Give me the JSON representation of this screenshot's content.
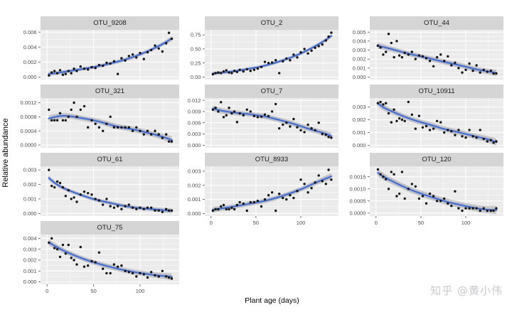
{
  "watermark": "知乎 @黄小伟",
  "chart_data": {
    "type": "scatter",
    "smooth": "loess-with-confidence-band",
    "title": "",
    "xlabel": "Plant age (days)",
    "ylabel": "Relative abundance",
    "x_ticks": [
      0,
      50,
      100
    ],
    "x_tick_labels": [
      "0",
      "50",
      "100"
    ],
    "x_minor": [
      25,
      75,
      125
    ],
    "x_range": [
      -7,
      142
    ],
    "colors": {
      "panel_bg": "#ebebeb",
      "strip_bg": "#d5d5d5",
      "grid_major": "#ffffff",
      "grid_minor": "#f7f7f7",
      "point": "#151515",
      "smooth_line": "#3d66c9",
      "smooth_halo": "rgba(125,150,220,0.55)",
      "band": "rgba(110,110,120,0.30)",
      "tick_text": "#4d4d4d",
      "tick_mark": "#333333"
    },
    "facets": [
      {
        "title": "OTU_9208",
        "has_x_axis": false,
        "y_ticks": [
          0,
          0.002,
          0.004,
          0.006
        ],
        "y_tick_labels": [
          "0.000",
          "0.002",
          "0.004",
          "0.006"
        ],
        "y_range": [
          -0.00035,
          0.0063
        ],
        "x": [
          2,
          5,
          8,
          11,
          14,
          17,
          20,
          23,
          26,
          29,
          32,
          36,
          40,
          44,
          48,
          52,
          56,
          60,
          64,
          68,
          72,
          76,
          80,
          84,
          88,
          92,
          96,
          100,
          104,
          108,
          112,
          116,
          120,
          124,
          128,
          131,
          134
        ],
        "y": [
          0.0002,
          0.0006,
          0.0008,
          0.0005,
          0.0009,
          0.0003,
          0.0004,
          0.0008,
          0.0005,
          0.0011,
          0.0008,
          0.0014,
          0.0011,
          0.001,
          0.0013,
          0.0012,
          0.0016,
          0.0015,
          0.0019,
          0.0018,
          0.0021,
          0.0004,
          0.0025,
          0.0022,
          0.0028,
          0.003,
          0.0026,
          0.0032,
          0.0024,
          0.0033,
          0.0036,
          0.0042,
          0.0038,
          0.0034,
          0.0045,
          0.0059,
          0.0051
        ]
      },
      {
        "title": "OTU_2",
        "has_x_axis": false,
        "y_ticks": [
          0,
          0.25,
          0.5,
          0.75
        ],
        "y_tick_labels": [
          "0.00",
          "0.25",
          "0.50",
          "0.75"
        ],
        "y_range": [
          -0.045,
          0.84
        ],
        "x": [
          2,
          5,
          8,
          11,
          14,
          17,
          20,
          23,
          26,
          29,
          32,
          36,
          40,
          44,
          48,
          52,
          56,
          60,
          64,
          68,
          72,
          76,
          80,
          84,
          88,
          92,
          96,
          100,
          104,
          108,
          112,
          116,
          120,
          124,
          128,
          131,
          134
        ],
        "y": [
          0.05,
          0.07,
          0.08,
          0.07,
          0.1,
          0.12,
          0.08,
          0.07,
          0.11,
          0.09,
          0.13,
          0.1,
          0.14,
          0.11,
          0.13,
          0.15,
          0.18,
          0.27,
          0.25,
          0.26,
          0.3,
          0.07,
          0.28,
          0.33,
          0.3,
          0.4,
          0.35,
          0.44,
          0.5,
          0.42,
          0.47,
          0.52,
          0.55,
          0.58,
          0.65,
          0.72,
          0.79
        ]
      },
      {
        "title": "OTU_44",
        "has_x_axis": false,
        "y_ticks": [
          0,
          0.001,
          0.002,
          0.003,
          0.004,
          0.005
        ],
        "y_tick_labels": [
          "0.000",
          "0.001",
          "0.002",
          "0.003",
          "0.004",
          "0.005"
        ],
        "y_range": [
          -0.00028,
          0.00525
        ],
        "x": [
          2,
          5,
          8,
          11,
          14,
          17,
          20,
          23,
          26,
          29,
          32,
          36,
          40,
          44,
          48,
          52,
          56,
          60,
          64,
          68,
          72,
          76,
          80,
          84,
          88,
          92,
          96,
          100,
          104,
          108,
          112,
          116,
          120,
          124,
          128,
          131,
          134
        ],
        "y": [
          0.0035,
          0.0033,
          0.0025,
          0.0028,
          0.0048,
          0.0038,
          0.0022,
          0.004,
          0.0024,
          0.0022,
          0.0027,
          0.0025,
          0.0028,
          0.002,
          0.0024,
          0.0023,
          0.0021,
          0.0018,
          0.0012,
          0.0022,
          0.0025,
          0.0018,
          0.0023,
          0.0013,
          0.0016,
          0.001,
          0.0005,
          0.0008,
          0.0015,
          0.0007,
          0.0013,
          0.0005,
          0.0008,
          0.0006,
          0.0007,
          0.0004,
          0.0004
        ]
      },
      {
        "title": "OTU_321",
        "has_x_axis": false,
        "y_ticks": [
          0,
          0.0004,
          0.0008,
          0.0012
        ],
        "y_tick_labels": [
          "0.0000",
          "0.0004",
          "0.0008",
          "0.0012"
        ],
        "y_range": [
          -8e-05,
          0.00133
        ],
        "x": [
          2,
          5,
          8,
          11,
          14,
          17,
          20,
          23,
          26,
          29,
          32,
          36,
          40,
          44,
          48,
          52,
          56,
          60,
          64,
          68,
          72,
          76,
          80,
          84,
          88,
          92,
          96,
          100,
          104,
          108,
          112,
          116,
          120,
          124,
          128,
          131,
          134
        ],
        "y": [
          0.001,
          0.0007,
          0.0007,
          0.0007,
          0.0009,
          0.0007,
          0.0007,
          0.0008,
          0.001,
          0.0012,
          0.0008,
          0.001,
          0.0011,
          0.0005,
          0.0007,
          0.0006,
          0.0005,
          0.0004,
          0.0006,
          0.0008,
          0.0005,
          0.0005,
          0.0005,
          0.0005,
          0.0005,
          0.0004,
          0.0005,
          0.0004,
          0.0003,
          0.0004,
          0.0003,
          0.0004,
          0.0003,
          0.0002,
          0.0003,
          0.0001,
          0.0001
        ]
      },
      {
        "title": "OTU_7",
        "has_x_axis": false,
        "y_ticks": [
          0,
          0.003,
          0.006,
          0.009,
          0.012
        ],
        "y_tick_labels": [
          "0.000",
          "0.003",
          "0.006",
          "0.009",
          "0.012"
        ],
        "y_range": [
          -0.0007,
          0.0126
        ],
        "x": [
          2,
          5,
          8,
          11,
          14,
          17,
          20,
          23,
          26,
          29,
          32,
          36,
          40,
          44,
          48,
          52,
          56,
          60,
          64,
          68,
          72,
          76,
          80,
          84,
          88,
          92,
          96,
          100,
          104,
          108,
          112,
          116,
          120,
          124,
          128,
          131,
          134
        ],
        "y": [
          0.0095,
          0.01,
          0.009,
          0.0115,
          0.0075,
          0.008,
          0.01,
          0.0085,
          0.009,
          0.0062,
          0.0085,
          0.008,
          0.0095,
          0.009,
          0.0078,
          0.0075,
          0.0076,
          0.0082,
          0.0078,
          0.009,
          0.011,
          0.0045,
          0.0055,
          0.006,
          0.005,
          0.007,
          0.0048,
          0.004,
          0.0035,
          0.0055,
          0.0045,
          0.004,
          0.006,
          0.003,
          0.0028,
          0.0022,
          0.002
        ]
      },
      {
        "title": "OTU_10911",
        "has_x_axis": false,
        "y_ticks": [
          0,
          0.001,
          0.002,
          0.003
        ],
        "y_tick_labels": [
          "0.000",
          "0.001",
          "0.002",
          "0.003"
        ],
        "y_range": [
          -0.0002,
          0.0037
        ],
        "x": [
          2,
          5,
          8,
          11,
          14,
          17,
          20,
          23,
          26,
          29,
          32,
          36,
          40,
          44,
          48,
          52,
          56,
          60,
          64,
          68,
          72,
          76,
          80,
          84,
          88,
          92,
          96,
          100,
          104,
          108,
          112,
          116,
          120,
          124,
          128,
          131,
          134
        ],
        "y": [
          0.0033,
          0.0034,
          0.0032,
          0.0033,
          0.0025,
          0.0018,
          0.0028,
          0.0019,
          0.0021,
          0.002,
          0.0019,
          0.0034,
          0.0024,
          0.0013,
          0.0023,
          0.0014,
          0.0015,
          0.0012,
          0.0013,
          0.0019,
          0.0018,
          0.001,
          0.0012,
          0.0011,
          0.0008,
          0.0012,
          0.0007,
          0.0006,
          0.0012,
          0.0007,
          0.0006,
          0.0012,
          0.0005,
          0.0003,
          0.0004,
          0.0002,
          0.0003
        ]
      },
      {
        "title": "OTU_61",
        "has_x_axis": false,
        "y_ticks": [
          0,
          0.001,
          0.002,
          0.003
        ],
        "y_tick_labels": [
          "0.000",
          "0.001",
          "0.002",
          "0.003"
        ],
        "y_range": [
          -0.00018,
          0.00325
        ],
        "x": [
          2,
          5,
          8,
          11,
          14,
          17,
          20,
          23,
          26,
          29,
          32,
          36,
          40,
          44,
          48,
          52,
          56,
          60,
          64,
          68,
          72,
          76,
          80,
          84,
          88,
          92,
          96,
          100,
          104,
          108,
          112,
          116,
          120,
          124,
          128,
          131,
          134
        ],
        "y": [
          0.003,
          0.0019,
          0.0018,
          0.0022,
          0.0021,
          0.0018,
          0.0012,
          0.0016,
          0.001,
          0.0011,
          0.0008,
          0.0013,
          0.0015,
          0.0014,
          0.0013,
          0.001,
          0.0009,
          0.0006,
          0.001,
          0.0005,
          0.0004,
          0.0005,
          0.0003,
          0.0005,
          0.0006,
          0.0004,
          0.0003,
          0.0004,
          0.0003,
          0.0004,
          0.0004,
          0.0002,
          0.0002,
          0.0001,
          0.0003,
          0.0002,
          0.0002
        ]
      },
      {
        "title": "OTU_8933",
        "has_x_axis": true,
        "y_ticks": [
          0,
          0.001,
          0.002,
          0.003
        ],
        "y_tick_labels": [
          "0.000",
          "0.001",
          "0.002",
          "0.003"
        ],
        "y_range": [
          -0.00018,
          0.00335
        ],
        "x": [
          2,
          5,
          8,
          11,
          14,
          17,
          20,
          23,
          26,
          29,
          32,
          36,
          40,
          44,
          48,
          52,
          56,
          60,
          64,
          68,
          72,
          76,
          80,
          84,
          88,
          92,
          96,
          100,
          104,
          108,
          112,
          116,
          120,
          124,
          128,
          131,
          134
        ],
        "y": [
          0.0002,
          0.0003,
          0.0003,
          0.0005,
          0.0006,
          0.0003,
          0.0003,
          0.0004,
          0.0003,
          0.0006,
          0.0008,
          0.0007,
          0.0002,
          0.0008,
          0.0008,
          0.0009,
          0.0005,
          0.001,
          0.0013,
          0.0015,
          0.0002,
          0.0014,
          0.0011,
          0.001,
          0.0013,
          0.0011,
          0.0016,
          0.0024,
          0.0021,
          0.0015,
          0.0018,
          0.0022,
          0.0027,
          0.0023,
          0.0021,
          0.0031,
          0.0024
        ]
      },
      {
        "title": "OTU_120",
        "has_x_axis": true,
        "y_ticks": [
          0,
          0.0005,
          0.001,
          0.0015
        ],
        "y_tick_labels": [
          "0.0000",
          "0.0005",
          "0.0010",
          "0.0015"
        ],
        "y_range": [
          -0.00012,
          0.00193
        ],
        "x": [
          2,
          5,
          8,
          11,
          14,
          17,
          20,
          23,
          26,
          29,
          32,
          36,
          40,
          44,
          48,
          52,
          56,
          60,
          64,
          68,
          72,
          76,
          80,
          84,
          88,
          92,
          96,
          100,
          104,
          108,
          112,
          116,
          120,
          124,
          128,
          131,
          134
        ],
        "y": [
          0.0018,
          0.0016,
          0.0015,
          0.0014,
          0.001,
          0.0017,
          0.0016,
          0.0007,
          0.0008,
          0.0017,
          0.0006,
          0.001,
          0.0012,
          0.0011,
          0.0006,
          0.0007,
          0.0004,
          0.0008,
          0.0007,
          0.0005,
          0.0005,
          0.0006,
          0.0004,
          0.0003,
          0.0009,
          0.0002,
          0.0001,
          0.0002,
          0.0002,
          0.0002,
          0.0002,
          0.0001,
          0.0002,
          0.0001,
          0.0001,
          0.0001,
          0.0002
        ]
      },
      {
        "title": "OTU_75",
        "has_x_axis": true,
        "y_ticks": [
          0,
          0.001,
          0.002,
          0.003,
          0.004
        ],
        "y_tick_labels": [
          "0.000",
          "0.001",
          "0.002",
          "0.003",
          "0.004"
        ],
        "y_range": [
          -0.00022,
          0.00435
        ],
        "x": [
          2,
          5,
          8,
          11,
          14,
          17,
          20,
          23,
          26,
          29,
          32,
          36,
          40,
          44,
          48,
          52,
          56,
          60,
          64,
          68,
          72,
          76,
          80,
          84,
          88,
          92,
          96,
          100,
          104,
          108,
          112,
          116,
          120,
          124,
          128,
          131,
          134
        ],
        "y": [
          0.0036,
          0.004,
          0.0031,
          0.003,
          0.0023,
          0.0034,
          0.0026,
          0.0034,
          0.0022,
          0.002,
          0.0016,
          0.0032,
          0.0014,
          0.0015,
          0.0019,
          0.0018,
          0.0027,
          0.0012,
          0.0008,
          0.0008,
          0.0016,
          0.0014,
          0.0015,
          0.001,
          0.0009,
          0.0008,
          0.0005,
          0.0008,
          0.0007,
          0.0004,
          0.0009,
          0.0006,
          0.0005,
          0.001,
          0.0005,
          0.0004,
          0.0003
        ]
      }
    ]
  }
}
